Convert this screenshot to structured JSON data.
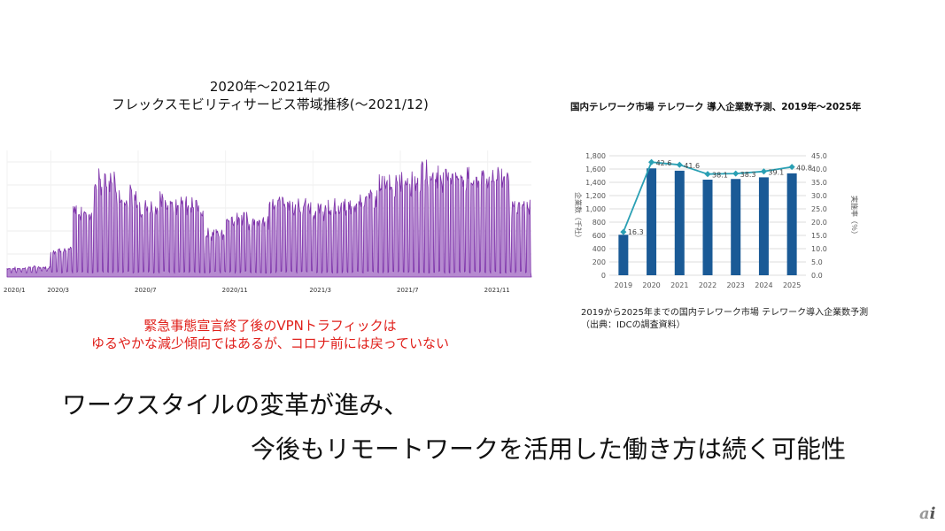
{
  "left_chart_title": [
    "2020年〜2021年の",
    "フレックスモビリティサービス帯域推移(〜2021/12)"
  ],
  "note": [
    "緊急事態宣言終了後のVPNトラフィックは",
    "ゆるやかな減少傾向ではあるが、コロナ前には戻っていない"
  ],
  "right_chart_title": "国内テレワーク市場 テレワーク 導入企業数予測、2019年〜2025年",
  "right_caption": [
    "2019から2025年までの国内テレワーク市場 テレワーク導入企業数予測",
    "（出典：IDCの調査資料）"
  ],
  "message": [
    "ワークスタイルの変革が進み、",
    "今後もリモートワークを活用した働き方は続く可能性"
  ],
  "logo": "ai",
  "chart_data": [
    {
      "type": "area",
      "title": "フレックスモビリティサービス帯域推移",
      "x_tick_labels": [
        "2020/1",
        "2020/3",
        "2020/7",
        "2020/11",
        "2021/3",
        "2021/7",
        "2021/11"
      ],
      "x_tick_month_index": [
        0,
        2,
        6,
        10,
        14,
        18,
        22
      ],
      "months": 24,
      "monthly_peak_relative": [
        0.08,
        0.09,
        0.25,
        0.6,
        0.88,
        0.75,
        0.65,
        0.7,
        0.65,
        0.4,
        0.55,
        0.5,
        0.7,
        0.65,
        0.62,
        0.65,
        0.75,
        0.85,
        0.9,
        0.95,
        0.95,
        0.92,
        0.95,
        0.65
      ],
      "baseline_relative": 0.03,
      "color": "#7b2fa8"
    },
    {
      "type": "bar",
      "title": "国内テレワーク市場 テレワーク 導入企業数予測、2019年〜2025年",
      "categories": [
        "2019",
        "2020",
        "2021",
        "2022",
        "2023",
        "2024",
        "2025"
      ],
      "series": [
        {
          "name": "企業数（千社）",
          "type": "bar",
          "values": [
            610,
            1610,
            1575,
            1440,
            1450,
            1475,
            1535
          ],
          "color": "#1a5a96"
        },
        {
          "name": "実施率（％）",
          "type": "line",
          "values": [
            16.3,
            42.6,
            41.6,
            38.1,
            38.3,
            39.1,
            40.8
          ],
          "labels": [
            "16.3",
            "42.6",
            "41.6",
            "38.1",
            "38.3",
            "39.1",
            "40.8"
          ],
          "color": "#2aa0b4"
        }
      ],
      "ylabel": "企業数（千社）",
      "y2label": "実施率（％）",
      "ylim": [
        0,
        1800
      ],
      "y2lim": [
        0,
        45
      ],
      "y_ticks": [
        "0",
        "200",
        "400",
        "600",
        "800",
        "1,000",
        "1,200",
        "1,400",
        "1,600",
        "1,800"
      ],
      "y2_ticks": [
        "0.0",
        "5.0",
        "10.0",
        "15.0",
        "20.0",
        "25.0",
        "30.0",
        "35.0",
        "40.0",
        "45.0"
      ]
    }
  ]
}
